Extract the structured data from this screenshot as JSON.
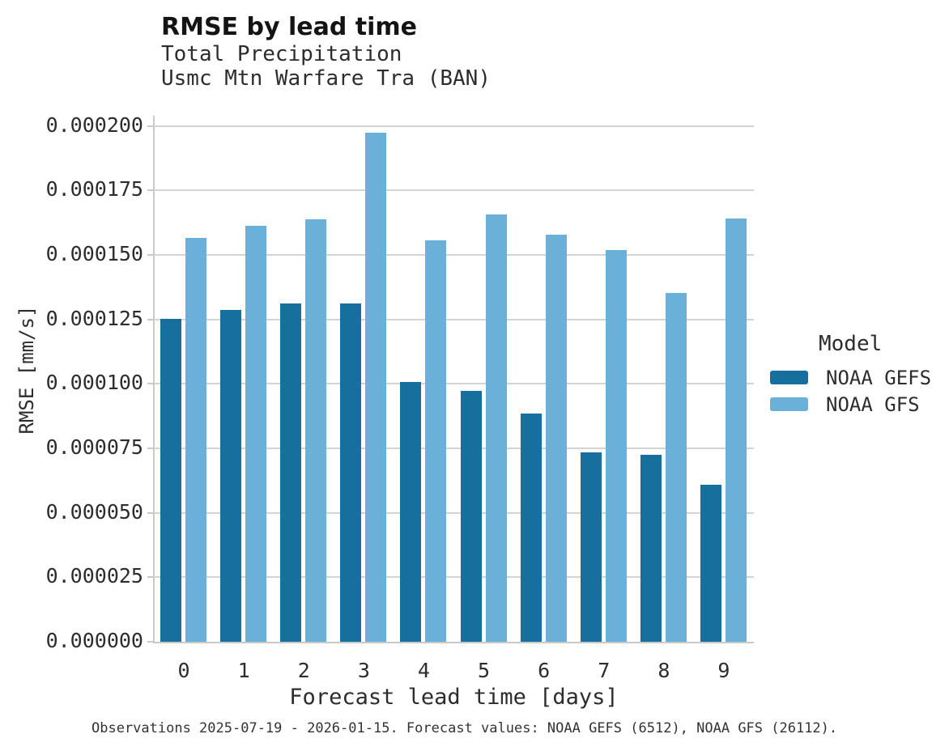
{
  "header": {
    "title": "RMSE by lead time",
    "subtitle_line1": "Total Precipitation",
    "subtitle_line2": "Usmc Mtn Warfare Tra (BAN)"
  },
  "legend": {
    "title": "Model",
    "entries": [
      {
        "label": "NOAA GEFS",
        "color": "#176f9e"
      },
      {
        "label": "NOAA GFS",
        "color": "#6ab0d8"
      }
    ]
  },
  "caption": "Observations 2025-07-19 - 2026-01-15. Forecast values: NOAA GEFS (6512), NOAA GFS (26112).",
  "chart_data": {
    "type": "bar",
    "title": "RMSE by lead time",
    "subtitle": "Total Precipitation — Usmc Mtn Warfare Tra (BAN)",
    "xlabel": "Forecast lead time [days]",
    "ylabel": "RMSE [mm/s]",
    "categories": [
      "0",
      "1",
      "2",
      "3",
      "4",
      "5",
      "6",
      "7",
      "8",
      "9"
    ],
    "series": [
      {
        "name": "NOAA GEFS",
        "color": "#176f9e",
        "values": [
          0.0001253,
          0.0001287,
          0.0001311,
          0.0001312,
          0.0001008,
          9.72e-05,
          8.84e-05,
          7.34e-05,
          7.24e-05,
          6.09e-05
        ]
      },
      {
        "name": "NOAA GFS",
        "color": "#6ab0d8",
        "values": [
          0.0001565,
          0.0001614,
          0.0001638,
          0.0001975,
          0.0001557,
          0.0001657,
          0.0001578,
          0.0001518,
          0.0001352,
          0.0001641
        ]
      }
    ],
    "yticks": {
      "labels": [
        "0.000200",
        "0.000175",
        "0.000150",
        "0.000125",
        "0.000100",
        "0.000075",
        "0.000050",
        "0.000025",
        "0.000000"
      ],
      "values": [
        0.0002,
        0.000175,
        0.00015,
        0.000125,
        0.0001,
        7.5e-05,
        5e-05,
        2.5e-05,
        0.0
      ]
    },
    "ylim": [
      0,
      0.000204
    ],
    "grid": "horizontal",
    "legend_title": "Model",
    "legend_position": "right"
  },
  "layout_colors": {
    "gridline": "#d4d4d4",
    "spine": "#c9c9c9",
    "background": "#ffffff"
  }
}
